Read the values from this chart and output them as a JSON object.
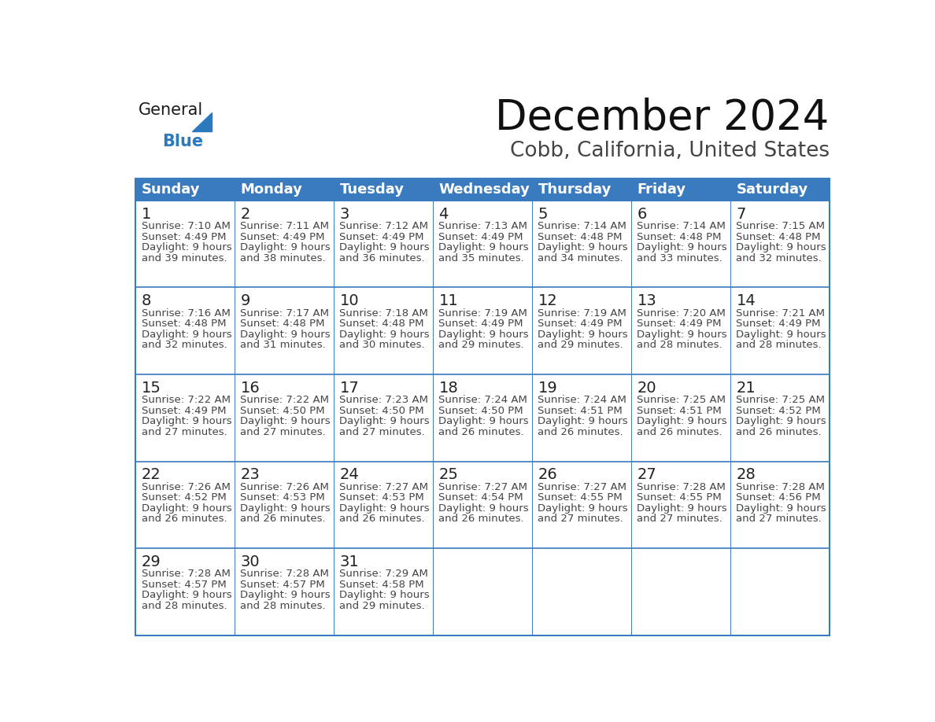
{
  "title": "December 2024",
  "subtitle": "Cobb, California, United States",
  "header_color": "#3a7abf",
  "header_text_color": "#ffffff",
  "cell_bg_color": "#ffffff",
  "row_divider_color": "#3a7abf",
  "border_color": "#3a7abf",
  "day_headers": [
    "Sunday",
    "Monday",
    "Tuesday",
    "Wednesday",
    "Thursday",
    "Friday",
    "Saturday"
  ],
  "days": [
    {
      "day": 1,
      "col": 0,
      "row": 0,
      "sunrise": "7:10 AM",
      "sunset": "4:49 PM",
      "daylight_line1": "Daylight: 9 hours",
      "daylight_line2": "and 39 minutes."
    },
    {
      "day": 2,
      "col": 1,
      "row": 0,
      "sunrise": "7:11 AM",
      "sunset": "4:49 PM",
      "daylight_line1": "Daylight: 9 hours",
      "daylight_line2": "and 38 minutes."
    },
    {
      "day": 3,
      "col": 2,
      "row": 0,
      "sunrise": "7:12 AM",
      "sunset": "4:49 PM",
      "daylight_line1": "Daylight: 9 hours",
      "daylight_line2": "and 36 minutes."
    },
    {
      "day": 4,
      "col": 3,
      "row": 0,
      "sunrise": "7:13 AM",
      "sunset": "4:49 PM",
      "daylight_line1": "Daylight: 9 hours",
      "daylight_line2": "and 35 minutes."
    },
    {
      "day": 5,
      "col": 4,
      "row": 0,
      "sunrise": "7:14 AM",
      "sunset": "4:48 PM",
      "daylight_line1": "Daylight: 9 hours",
      "daylight_line2": "and 34 minutes."
    },
    {
      "day": 6,
      "col": 5,
      "row": 0,
      "sunrise": "7:14 AM",
      "sunset": "4:48 PM",
      "daylight_line1": "Daylight: 9 hours",
      "daylight_line2": "and 33 minutes."
    },
    {
      "day": 7,
      "col": 6,
      "row": 0,
      "sunrise": "7:15 AM",
      "sunset": "4:48 PM",
      "daylight_line1": "Daylight: 9 hours",
      "daylight_line2": "and 32 minutes."
    },
    {
      "day": 8,
      "col": 0,
      "row": 1,
      "sunrise": "7:16 AM",
      "sunset": "4:48 PM",
      "daylight_line1": "Daylight: 9 hours",
      "daylight_line2": "and 32 minutes."
    },
    {
      "day": 9,
      "col": 1,
      "row": 1,
      "sunrise": "7:17 AM",
      "sunset": "4:48 PM",
      "daylight_line1": "Daylight: 9 hours",
      "daylight_line2": "and 31 minutes."
    },
    {
      "day": 10,
      "col": 2,
      "row": 1,
      "sunrise": "7:18 AM",
      "sunset": "4:48 PM",
      "daylight_line1": "Daylight: 9 hours",
      "daylight_line2": "and 30 minutes."
    },
    {
      "day": 11,
      "col": 3,
      "row": 1,
      "sunrise": "7:19 AM",
      "sunset": "4:49 PM",
      "daylight_line1": "Daylight: 9 hours",
      "daylight_line2": "and 29 minutes."
    },
    {
      "day": 12,
      "col": 4,
      "row": 1,
      "sunrise": "7:19 AM",
      "sunset": "4:49 PM",
      "daylight_line1": "Daylight: 9 hours",
      "daylight_line2": "and 29 minutes."
    },
    {
      "day": 13,
      "col": 5,
      "row": 1,
      "sunrise": "7:20 AM",
      "sunset": "4:49 PM",
      "daylight_line1": "Daylight: 9 hours",
      "daylight_line2": "and 28 minutes."
    },
    {
      "day": 14,
      "col": 6,
      "row": 1,
      "sunrise": "7:21 AM",
      "sunset": "4:49 PM",
      "daylight_line1": "Daylight: 9 hours",
      "daylight_line2": "and 28 minutes."
    },
    {
      "day": 15,
      "col": 0,
      "row": 2,
      "sunrise": "7:22 AM",
      "sunset": "4:49 PM",
      "daylight_line1": "Daylight: 9 hours",
      "daylight_line2": "and 27 minutes."
    },
    {
      "day": 16,
      "col": 1,
      "row": 2,
      "sunrise": "7:22 AM",
      "sunset": "4:50 PM",
      "daylight_line1": "Daylight: 9 hours",
      "daylight_line2": "and 27 minutes."
    },
    {
      "day": 17,
      "col": 2,
      "row": 2,
      "sunrise": "7:23 AM",
      "sunset": "4:50 PM",
      "daylight_line1": "Daylight: 9 hours",
      "daylight_line2": "and 27 minutes."
    },
    {
      "day": 18,
      "col": 3,
      "row": 2,
      "sunrise": "7:24 AM",
      "sunset": "4:50 PM",
      "daylight_line1": "Daylight: 9 hours",
      "daylight_line2": "and 26 minutes."
    },
    {
      "day": 19,
      "col": 4,
      "row": 2,
      "sunrise": "7:24 AM",
      "sunset": "4:51 PM",
      "daylight_line1": "Daylight: 9 hours",
      "daylight_line2": "and 26 minutes."
    },
    {
      "day": 20,
      "col": 5,
      "row": 2,
      "sunrise": "7:25 AM",
      "sunset": "4:51 PM",
      "daylight_line1": "Daylight: 9 hours",
      "daylight_line2": "and 26 minutes."
    },
    {
      "day": 21,
      "col": 6,
      "row": 2,
      "sunrise": "7:25 AM",
      "sunset": "4:52 PM",
      "daylight_line1": "Daylight: 9 hours",
      "daylight_line2": "and 26 minutes."
    },
    {
      "day": 22,
      "col": 0,
      "row": 3,
      "sunrise": "7:26 AM",
      "sunset": "4:52 PM",
      "daylight_line1": "Daylight: 9 hours",
      "daylight_line2": "and 26 minutes."
    },
    {
      "day": 23,
      "col": 1,
      "row": 3,
      "sunrise": "7:26 AM",
      "sunset": "4:53 PM",
      "daylight_line1": "Daylight: 9 hours",
      "daylight_line2": "and 26 minutes."
    },
    {
      "day": 24,
      "col": 2,
      "row": 3,
      "sunrise": "7:27 AM",
      "sunset": "4:53 PM",
      "daylight_line1": "Daylight: 9 hours",
      "daylight_line2": "and 26 minutes."
    },
    {
      "day": 25,
      "col": 3,
      "row": 3,
      "sunrise": "7:27 AM",
      "sunset": "4:54 PM",
      "daylight_line1": "Daylight: 9 hours",
      "daylight_line2": "and 26 minutes."
    },
    {
      "day": 26,
      "col": 4,
      "row": 3,
      "sunrise": "7:27 AM",
      "sunset": "4:55 PM",
      "daylight_line1": "Daylight: 9 hours",
      "daylight_line2": "and 27 minutes."
    },
    {
      "day": 27,
      "col": 5,
      "row": 3,
      "sunrise": "7:28 AM",
      "sunset": "4:55 PM",
      "daylight_line1": "Daylight: 9 hours",
      "daylight_line2": "and 27 minutes."
    },
    {
      "day": 28,
      "col": 6,
      "row": 3,
      "sunrise": "7:28 AM",
      "sunset": "4:56 PM",
      "daylight_line1": "Daylight: 9 hours",
      "daylight_line2": "and 27 minutes."
    },
    {
      "day": 29,
      "col": 0,
      "row": 4,
      "sunrise": "7:28 AM",
      "sunset": "4:57 PM",
      "daylight_line1": "Daylight: 9 hours",
      "daylight_line2": "and 28 minutes."
    },
    {
      "day": 30,
      "col": 1,
      "row": 4,
      "sunrise": "7:28 AM",
      "sunset": "4:57 PM",
      "daylight_line1": "Daylight: 9 hours",
      "daylight_line2": "and 28 minutes."
    },
    {
      "day": 31,
      "col": 2,
      "row": 4,
      "sunrise": "7:29 AM",
      "sunset": "4:58 PM",
      "daylight_line1": "Daylight: 9 hours",
      "daylight_line2": "and 29 minutes."
    }
  ],
  "n_rows": 5,
  "n_cols": 7,
  "logo_text_general": "General",
  "logo_text_blue": "Blue",
  "logo_color_general": "#1a1a1a",
  "logo_color_blue": "#2b7abf",
  "logo_triangle_color": "#2b7abf",
  "text_color": "#222222",
  "cell_text_color": "#444444",
  "title_fontsize": 38,
  "subtitle_fontsize": 19,
  "header_fontsize": 13,
  "day_num_fontsize": 14,
  "cell_info_fontsize": 9.5
}
